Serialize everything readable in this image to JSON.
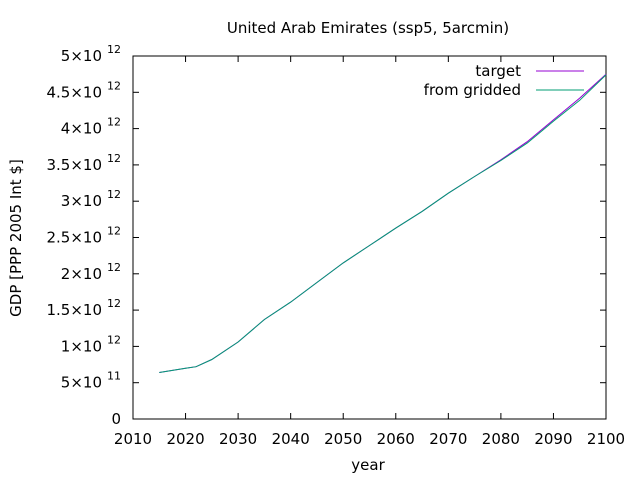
{
  "chart_data": {
    "type": "line",
    "title": "United Arab Emirates (ssp5, 5arcmin)",
    "xlabel": "year",
    "ylabel": "GDP [PPP 2005 Int $]",
    "xlim": [
      2010,
      2100
    ],
    "ylim": [
      0,
      5000000000000
    ],
    "x_ticks": [
      2010,
      2020,
      2030,
      2040,
      2050,
      2060,
      2070,
      2080,
      2090,
      2100
    ],
    "y_ticks": [
      {
        "value": 0,
        "mantissa": "0",
        "exp": ""
      },
      {
        "value": 500000000000,
        "mantissa": "5×10",
        "exp": "11"
      },
      {
        "value": 1000000000000,
        "mantissa": "1×10",
        "exp": "12"
      },
      {
        "value": 1500000000000,
        "mantissa": "1.5×10",
        "exp": "12"
      },
      {
        "value": 2000000000000,
        "mantissa": "2×10",
        "exp": "12"
      },
      {
        "value": 2500000000000,
        "mantissa": "2.5×10",
        "exp": "12"
      },
      {
        "value": 3000000000000,
        "mantissa": "3×10",
        "exp": "12"
      },
      {
        "value": 3500000000000,
        "mantissa": "3.5×10",
        "exp": "12"
      },
      {
        "value": 4000000000000,
        "mantissa": "4×10",
        "exp": "12"
      },
      {
        "value": 4500000000000,
        "mantissa": "4.5×10",
        "exp": "12"
      },
      {
        "value": 5000000000000,
        "mantissa": "5×10",
        "exp": "12"
      }
    ],
    "grid": false,
    "legend_position": "top-right",
    "x": [
      2015,
      2020,
      2022,
      2025,
      2030,
      2035,
      2040,
      2045,
      2050,
      2055,
      2060,
      2065,
      2070,
      2075,
      2080,
      2085,
      2090,
      2095,
      2100
    ],
    "series": [
      {
        "name": "target",
        "color": "#9400d3",
        "values": [
          640000000000,
          700000000000,
          720000000000,
          820000000000,
          1060000000000,
          1370000000000,
          1610000000000,
          1880000000000,
          2150000000000,
          2390000000000,
          2630000000000,
          2860000000000,
          3110000000000,
          3340000000000,
          3570000000000,
          3820000000000,
          4120000000000,
          4420000000000,
          4750000000000
        ]
      },
      {
        "name": "from gridded",
        "color": "#009e73",
        "values": [
          640000000000,
          700000000000,
          720000000000,
          820000000000,
          1060000000000,
          1370000000000,
          1610000000000,
          1880000000000,
          2150000000000,
          2390000000000,
          2630000000000,
          2860000000000,
          3110000000000,
          3340000000000,
          3560000000000,
          3800000000000,
          4100000000000,
          4390000000000,
          4740000000000
        ]
      }
    ]
  }
}
